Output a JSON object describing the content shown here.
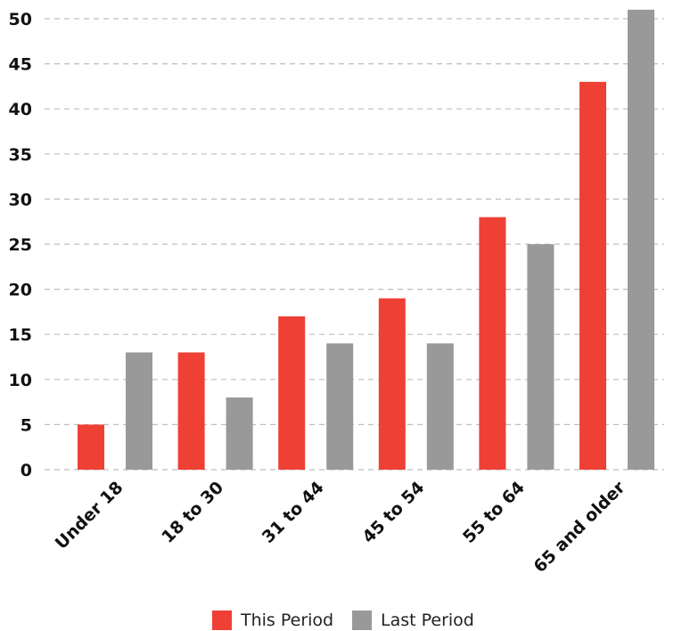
{
  "chart_data": {
    "type": "bar",
    "categories": [
      "Under 18",
      "18 to 30",
      "31 to 44",
      "45 to 54",
      "55 to 64",
      "65 and older"
    ],
    "series": [
      {
        "name": "This Period",
        "color": "#ee4035",
        "values": [
          5,
          13,
          17,
          19,
          28,
          43
        ]
      },
      {
        "name": "Last Period",
        "color": "#999999",
        "values": [
          13,
          8,
          14,
          14,
          25,
          51
        ]
      }
    ],
    "yticks": [
      "0",
      "5",
      "10",
      "15",
      "20",
      "25",
      "30",
      "35",
      "40",
      "45",
      "50"
    ],
    "ylim": [
      0,
      50
    ],
    "grid": true,
    "legend_position": "bottom"
  }
}
